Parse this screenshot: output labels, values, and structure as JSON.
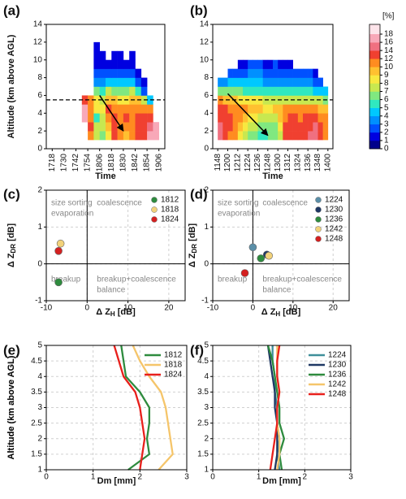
{
  "chart_data": [
    {
      "type": "heatmap",
      "panel": "(a)",
      "xlabel": "Time",
      "ylabel": "Altitude (km above AGL)",
      "x": [
        1068,
        1074,
        1080,
        1086,
        1092,
        1098,
        1104,
        1110,
        1116,
        1122,
        1128,
        1134,
        1140
      ],
      "y": [
        1,
        2,
        3,
        4,
        5,
        6,
        7,
        8,
        9,
        10,
        11
      ],
      "values": [
        [
          null,
          10,
          7,
          6,
          8,
          12,
          11,
          9,
          10,
          12,
          13,
          16,
          17
        ],
        [
          null,
          12,
          7,
          7,
          9,
          12,
          11,
          10,
          11,
          12,
          13,
          14,
          17
        ],
        [
          17,
          10,
          5,
          7,
          10,
          12,
          11,
          12,
          11,
          12,
          12,
          12,
          null
        ],
        [
          17,
          11,
          8,
          8,
          12,
          11,
          10,
          11,
          10,
          10,
          11,
          11,
          null
        ],
        [
          12,
          11,
          8,
          7,
          9,
          9,
          8,
          8,
          9,
          9,
          7,
          4,
          null
        ],
        [
          null,
          null,
          6,
          5,
          7,
          6,
          6,
          6,
          7,
          5,
          2,
          null,
          null
        ],
        [
          null,
          null,
          3,
          3,
          4,
          4,
          4,
          4,
          4,
          2,
          1,
          null,
          null
        ],
        [
          null,
          null,
          2,
          2,
          2,
          2,
          2,
          2,
          2,
          1,
          null,
          null,
          null
        ],
        [
          null,
          null,
          1,
          1,
          1,
          1,
          1,
          1,
          1,
          null,
          null,
          null,
          null
        ],
        [
          null,
          null,
          1,
          1,
          null,
          1,
          1,
          null,
          1,
          null,
          null,
          null,
          null
        ],
        [
          null,
          null,
          1,
          null,
          null,
          null,
          null,
          null,
          null,
          null,
          null,
          null,
          null
        ]
      ],
      "levels": [
        0,
        1,
        2,
        3,
        4,
        5,
        6,
        7,
        8,
        9,
        10,
        12,
        14,
        16,
        18
      ],
      "colors": [
        "#00008b",
        "#0000e0",
        "#0050ff",
        "#0090ff",
        "#00c8ff",
        "#30e8c0",
        "#80e880",
        "#c8e850",
        "#f8e840",
        "#ffc030",
        "#ff8c20",
        "#f04030",
        "#f07080",
        "#f8a8b8"
      ],
      "hline": 5.5,
      "arrow": {
        "x": [
          1086,
          1110
        ],
        "y": [
          6,
          2
        ]
      },
      "xlim": [
        1032,
        1152
      ],
      "xticks": [
        {
          "value": 1038,
          "label": "1718"
        },
        {
          "value": 1050,
          "label": "1730"
        },
        {
          "value": 1062,
          "label": "1742"
        },
        {
          "value": 1074,
          "label": "1754"
        },
        {
          "value": 1086,
          "label": "1806"
        },
        {
          "value": 1098,
          "label": "1818"
        },
        {
          "value": 1110,
          "label": "1830"
        },
        {
          "value": 1122,
          "label": "1842"
        },
        {
          "value": 1134,
          "label": "1854"
        },
        {
          "value": 1146,
          "label": "1906"
        }
      ],
      "ylim": [
        0,
        14
      ],
      "yticks": [
        0,
        2,
        4,
        6,
        8,
        10,
        12,
        14
      ]
    },
    {
      "type": "heatmap",
      "panel": "(b)",
      "xlabel": "Time",
      "x": [
        708,
        714,
        720,
        726,
        732,
        738,
        744,
        750,
        756,
        762,
        768,
        774,
        780,
        786,
        792,
        798,
        804,
        810,
        816,
        822,
        828,
        834
      ],
      "y": [
        1,
        2,
        3,
        4,
        5,
        6,
        7,
        8,
        9
      ],
      "values": [
        [
          14,
          12,
          11,
          10,
          8,
          7,
          6,
          6,
          5,
          5,
          6,
          6,
          7,
          12,
          13,
          12,
          12,
          13,
          14,
          14,
          12,
          10
        ],
        [
          14,
          13,
          12,
          10,
          9,
          8,
          7,
          7,
          6,
          6,
          6,
          6,
          8,
          12,
          13,
          13,
          12,
          13,
          13,
          14,
          12,
          11
        ],
        [
          13,
          12,
          12,
          11,
          10,
          9,
          8,
          8,
          7,
          7,
          7,
          7,
          9,
          11,
          12,
          12,
          11,
          12,
          12,
          12,
          11,
          10
        ],
        [
          12,
          12,
          11,
          11,
          10,
          10,
          9,
          9,
          9,
          8,
          8,
          9,
          9,
          10,
          10,
          10,
          10,
          10,
          10,
          10,
          9,
          9
        ],
        [
          10,
          9,
          9,
          9,
          8,
          8,
          8,
          8,
          8,
          7,
          7,
          7,
          7,
          7,
          7,
          7,
          7,
          7,
          7,
          7,
          7,
          6
        ],
        [
          6,
          6,
          6,
          6,
          6,
          5,
          5,
          5,
          5,
          5,
          5,
          5,
          5,
          5,
          5,
          5,
          5,
          5,
          5,
          4,
          4,
          4
        ],
        [
          3,
          3,
          4,
          4,
          4,
          4,
          4,
          4,
          4,
          3,
          3,
          3,
          3,
          3,
          3,
          3,
          3,
          3,
          3,
          2,
          2,
          null
        ],
        [
          null,
          null,
          2,
          2,
          2,
          2,
          3,
          3,
          3,
          2,
          2,
          2,
          2,
          2,
          2,
          2,
          2,
          2,
          2,
          1,
          null,
          null
        ],
        [
          null,
          null,
          null,
          null,
          1,
          1,
          2,
          2,
          2,
          1,
          1,
          2,
          1,
          1,
          1,
          null,
          null,
          null,
          null,
          null,
          null,
          null
        ]
      ],
      "levels": [
        0,
        1,
        2,
        3,
        4,
        5,
        6,
        7,
        8,
        9,
        10,
        12,
        14,
        16,
        18
      ],
      "colors": [
        "#00008b",
        "#0000e0",
        "#0050ff",
        "#0090ff",
        "#00c8ff",
        "#30e8c0",
        "#80e880",
        "#c8e850",
        "#f8e840",
        "#ffc030",
        "#ff8c20",
        "#f04030",
        "#f07080",
        "#f8a8b8"
      ],
      "colorbar_label": "[%]",
      "hline": 5.5,
      "arrow": {
        "x": [
          720,
          768
        ],
        "y": [
          6.2,
          1.5
        ]
      },
      "xlim": [
        702,
        846
      ],
      "xticks": [
        {
          "value": 708,
          "label": "1148"
        },
        {
          "value": 720,
          "label": "1200"
        },
        {
          "value": 732,
          "label": "1212"
        },
        {
          "value": 744,
          "label": "1224"
        },
        {
          "value": 756,
          "label": "1236"
        },
        {
          "value": 768,
          "label": "1248"
        },
        {
          "value": 780,
          "label": "1300"
        },
        {
          "value": 792,
          "label": "1312"
        },
        {
          "value": 804,
          "label": "1324"
        },
        {
          "value": 816,
          "label": "1336"
        },
        {
          "value": 828,
          "label": "1348"
        },
        {
          "value": 840,
          "label": "1400"
        }
      ],
      "ylim": [
        0,
        14
      ],
      "yticks": [
        0,
        2,
        4,
        6,
        8,
        10,
        12,
        14
      ]
    },
    {
      "type": "scatter",
      "panel": "(c)",
      "xlabel": [
        "Δ Z",
        "H",
        " [dB]"
      ],
      "ylabel": [
        "Δ Z",
        "DR",
        " [dB]"
      ],
      "annotations": {
        "upper_left": [
          "size sorting",
          "evaporation"
        ],
        "upper_right": [
          "coalescence"
        ],
        "lower_left": [
          "breakup"
        ],
        "lower_right": [
          "breakup+coalescence",
          "balance"
        ]
      },
      "series": [
        {
          "name": "1812",
          "color": "#2e8b3e",
          "x": [
            -7
          ],
          "values": [
            -0.5
          ]
        },
        {
          "name": "1818",
          "color": "#f2d27a",
          "x": [
            -6.5
          ],
          "values": [
            0.55
          ]
        },
        {
          "name": "1824",
          "color": "#d42020",
          "x": [
            -7
          ],
          "values": [
            0.35
          ]
        }
      ],
      "xlim": [
        -10,
        24
      ],
      "xticks": [
        -10,
        0,
        10,
        20
      ],
      "ylim": [
        -1,
        2
      ],
      "yticks": [
        -1,
        0,
        1,
        2
      ],
      "grid": true
    },
    {
      "type": "scatter",
      "panel": "(d)",
      "xlabel": [
        "Δ Z",
        "H",
        " [dB]"
      ],
      "ylabel": [
        "Δ Z",
        "DR",
        " [dB]"
      ],
      "annotations": {
        "upper_left": [
          "size sorting",
          "evaporation"
        ],
        "upper_right": [
          "coalescence"
        ],
        "lower_left": [
          "breakup"
        ],
        "lower_right": [
          "breakup+coalescence",
          "balance"
        ]
      },
      "series": [
        {
          "name": "1224",
          "color": "#5b8fa8",
          "x": [
            0
          ],
          "values": [
            0.45
          ]
        },
        {
          "name": "1230",
          "color": "#1f3864",
          "x": [
            3.5
          ],
          "values": [
            0.25
          ]
        },
        {
          "name": "1236",
          "color": "#2e8b3e",
          "x": [
            2
          ],
          "values": [
            0.15
          ]
        },
        {
          "name": "1242",
          "color": "#f2d27a",
          "x": [
            4
          ],
          "values": [
            0.22
          ]
        },
        {
          "name": "1248",
          "color": "#d42020",
          "x": [
            -2
          ],
          "values": [
            -0.25
          ]
        }
      ],
      "xlim": [
        -10,
        24
      ],
      "xticks": [
        -10,
        0,
        10,
        20
      ],
      "ylim": [
        -1,
        2
      ],
      "yticks": [
        -1,
        0,
        1,
        2
      ],
      "grid": true
    },
    {
      "type": "line",
      "panel": "(e)",
      "xlabel": "Dm [mm]",
      "ylabel": "Altitude (km above AGL)",
      "y": [
        1,
        1.5,
        2,
        2.5,
        3,
        3.5,
        4,
        4.5,
        5
      ],
      "series": [
        {
          "name": "1812",
          "color": "#2e8b3e",
          "values": [
            1.75,
            2.2,
            2.15,
            2.2,
            2.2,
            2.0,
            1.7,
            1.65,
            1.6
          ]
        },
        {
          "name": "1818",
          "color": "#f5c56a",
          "values": [
            2.4,
            2.7,
            2.65,
            2.6,
            2.55,
            2.45,
            2.2,
            2.0,
            1.85
          ]
        },
        {
          "name": "1824",
          "color": "#e8201c",
          "values": [
            2.0,
            2.05,
            2.1,
            2.05,
            2.0,
            1.9,
            1.65,
            1.55,
            1.45
          ]
        }
      ],
      "xlim": [
        0,
        3
      ],
      "xticks": [
        0,
        1,
        2,
        3
      ],
      "ylim": [
        1,
        5
      ],
      "yticks": [
        1,
        1.5,
        2,
        2.5,
        3,
        3.5,
        4,
        4.5,
        5
      ],
      "grid": true
    },
    {
      "type": "line",
      "panel": "(f)",
      "xlabel": "Dm [mm]",
      "ylabel": "Altitude (km above AGL)",
      "y": [
        1,
        1.5,
        2,
        2.5,
        3,
        3.5,
        4,
        4.5,
        5
      ],
      "series": [
        {
          "name": "1224",
          "color": "#3f8f9a",
          "values": [
            1.45,
            1.4,
            1.45,
            1.4,
            1.4,
            1.35,
            1.35,
            1.3,
            1.3
          ]
        },
        {
          "name": "1230",
          "color": "#1f3864",
          "values": [
            1.35,
            1.4,
            1.4,
            1.4,
            1.35,
            1.35,
            1.3,
            1.25,
            1.2
          ]
        },
        {
          "name": "1236",
          "color": "#2e8b3e",
          "values": [
            1.5,
            1.45,
            1.55,
            1.45,
            1.45,
            1.4,
            1.35,
            1.3,
            1.2
          ]
        },
        {
          "name": "1242",
          "color": "#f5c56a",
          "values": [
            1.4,
            1.45,
            1.45,
            1.4,
            1.4,
            1.45,
            1.4,
            1.4,
            1.4
          ]
        },
        {
          "name": "1248",
          "color": "#e8201c",
          "values": [
            1.25,
            1.3,
            1.35,
            1.4,
            1.4,
            1.45,
            1.4,
            1.4,
            1.45
          ]
        }
      ],
      "xlim": [
        0,
        3
      ],
      "xticks": [
        0,
        1,
        2,
        3
      ],
      "ylim": [
        1,
        5
      ],
      "yticks": [
        1,
        1.5,
        2,
        2.5,
        3,
        3.5,
        4,
        4.5,
        5
      ],
      "grid": true
    }
  ]
}
